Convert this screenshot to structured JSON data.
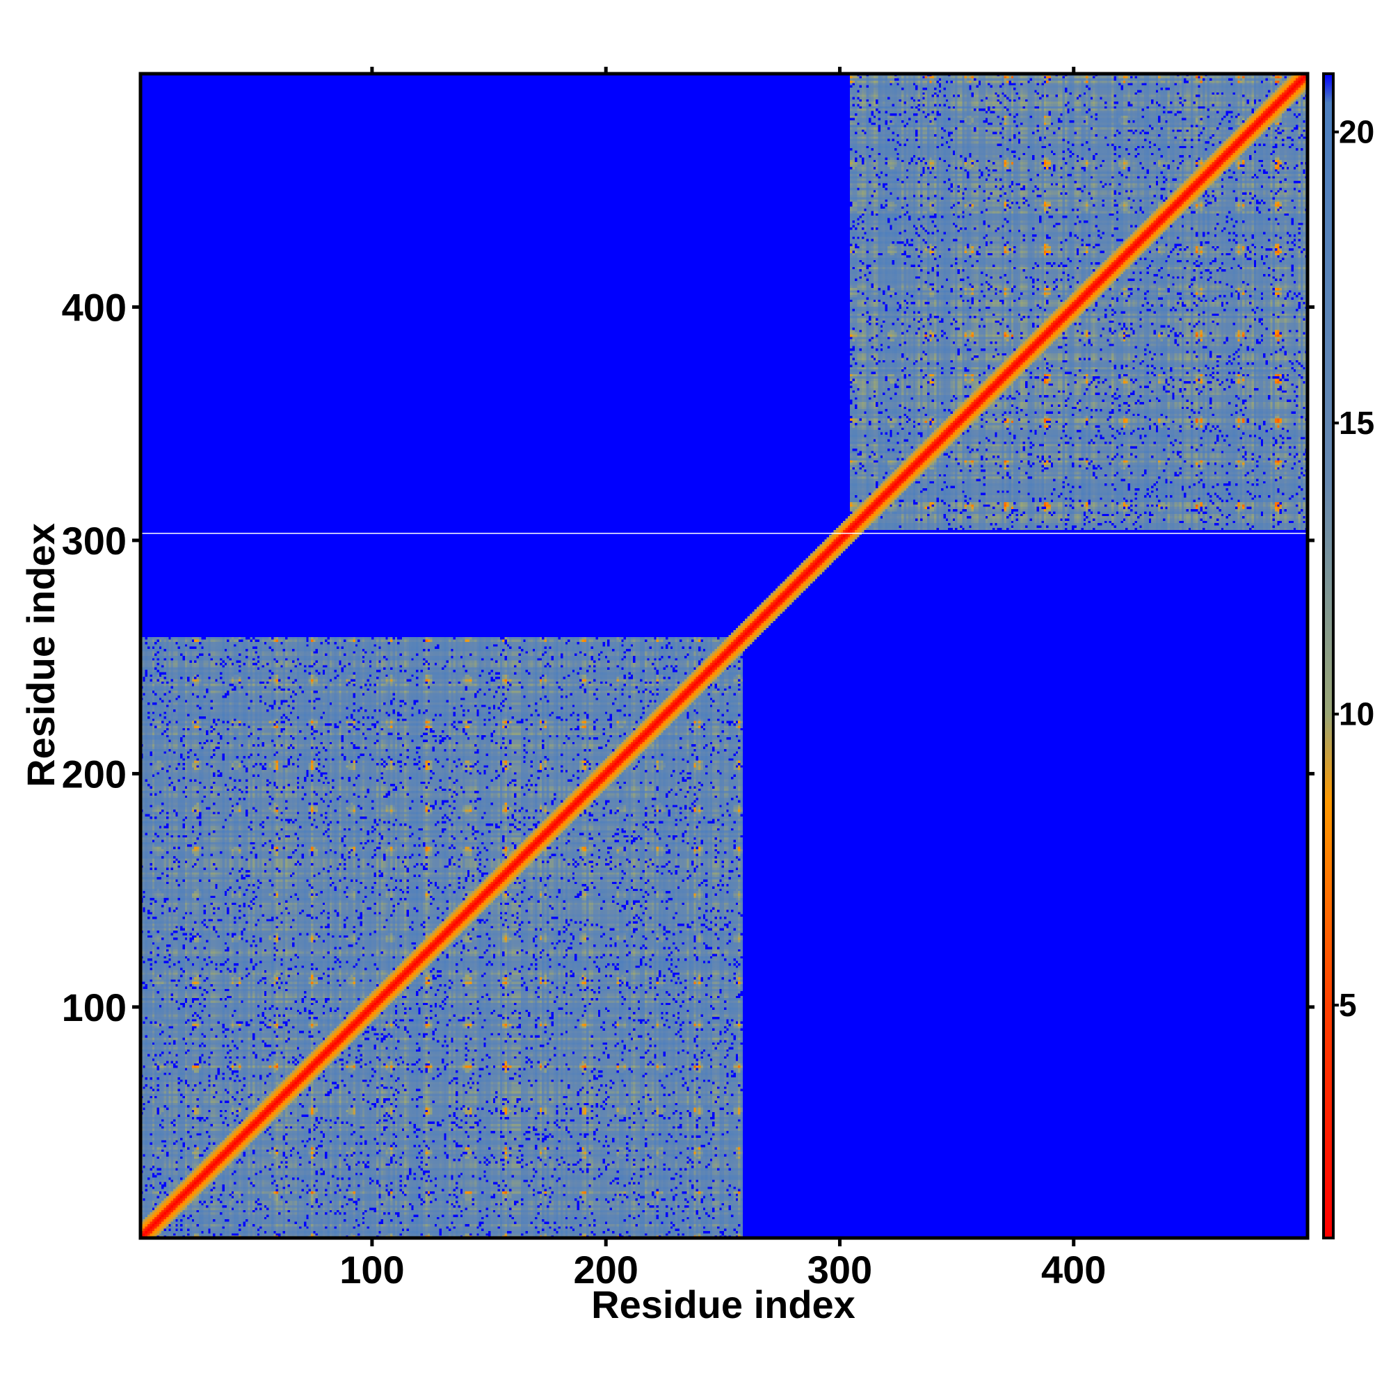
{
  "chart_data": {
    "type": "heatmap",
    "title": "",
    "xlabel": "Residue index",
    "ylabel": "Residue index",
    "xlim": [
      1,
      500
    ],
    "ylim": [
      1,
      500
    ],
    "x_ticks": [
      100,
      200,
      300,
      400
    ],
    "x_tick_labels": [
      "100",
      "200",
      "300",
      "400"
    ],
    "y_ticks": [
      100,
      200,
      300,
      400
    ],
    "y_tick_labels": [
      "100",
      "200",
      "300",
      "400"
    ],
    "colorbar": {
      "range": [
        1,
        21
      ],
      "ticks": [
        5,
        10,
        15,
        20
      ],
      "tick_labels": [
        "5",
        "10",
        "15",
        "20"
      ],
      "stops": [
        {
          "value": 1,
          "color": "#ff0000"
        },
        {
          "value": 5,
          "color": "#ff4000"
        },
        {
          "value": 8.5,
          "color": "#ff9900"
        },
        {
          "value": 10,
          "color": "#9aa676"
        },
        {
          "value": 14,
          "color": "#6688b0"
        },
        {
          "value": 20.5,
          "color": "#4d7fbf"
        },
        {
          "value": 21,
          "color": "#0000ff"
        }
      ]
    },
    "background_color": "#0000ff",
    "domains": [
      {
        "start": 1,
        "end": 258
      },
      {
        "start": 305,
        "end": 500
      }
    ],
    "white_line_y": 303,
    "grid": false,
    "legend": "colorbar-right"
  }
}
